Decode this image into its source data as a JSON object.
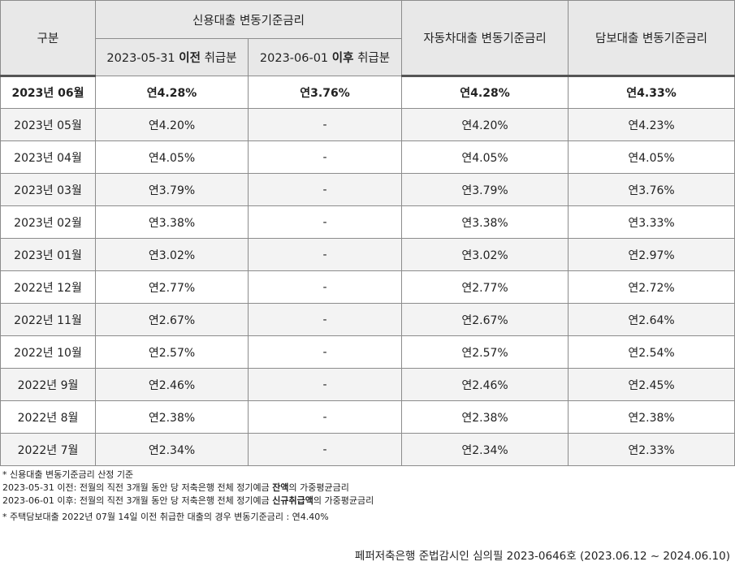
{
  "header": {
    "category": "구분",
    "credit_group": "신용대출 변동기준금리",
    "credit_before_date": "2023-05-31",
    "credit_before_bold": "이전",
    "credit_before_suffix": "취급분",
    "credit_after_date": "2023-06-01",
    "credit_after_bold": "이후",
    "credit_after_suffix": "취급분",
    "auto": "자동차대출 변동기준금리",
    "mortgage": "담보대출 변동기준금리"
  },
  "rows": [
    {
      "period": "2023년 06월",
      "before": "연4.28%",
      "after": "연3.76%",
      "auto": "연4.28%",
      "mortgage": "연4.33%"
    },
    {
      "period": "2023년 05월",
      "before": "연4.20%",
      "after": "-",
      "auto": "연4.20%",
      "mortgage": "연4.23%"
    },
    {
      "period": "2023년 04월",
      "before": "연4.05%",
      "after": "-",
      "auto": "연4.05%",
      "mortgage": "연4.05%"
    },
    {
      "period": "2023년 03월",
      "before": "연3.79%",
      "after": "-",
      "auto": "연3.79%",
      "mortgage": "연3.76%"
    },
    {
      "period": "2023년 02월",
      "before": "연3.38%",
      "after": "-",
      "auto": "연3.38%",
      "mortgage": "연3.33%"
    },
    {
      "period": "2023년 01월",
      "before": "연3.02%",
      "after": "-",
      "auto": "연3.02%",
      "mortgage": "연2.97%"
    },
    {
      "period": "2022년 12월",
      "before": "연2.77%",
      "after": "-",
      "auto": "연2.77%",
      "mortgage": "연2.72%"
    },
    {
      "period": "2022년 11월",
      "before": "연2.67%",
      "after": "-",
      "auto": "연2.67%",
      "mortgage": "연2.64%"
    },
    {
      "period": "2022년 10월",
      "before": "연2.57%",
      "after": "-",
      "auto": "연2.57%",
      "mortgage": "연2.54%"
    },
    {
      "period": "2022년 9월",
      "before": "연2.46%",
      "after": "-",
      "auto": "연2.46%",
      "mortgage": "연2.45%"
    },
    {
      "period": "2022년 8월",
      "before": "연2.38%",
      "after": "-",
      "auto": "연2.38%",
      "mortgage": "연2.38%"
    },
    {
      "period": "2022년 7월",
      "before": "연2.34%",
      "after": "-",
      "auto": "연2.34%",
      "mortgage": "연2.33%"
    }
  ],
  "notes": {
    "line1": "* 신용대출 변동기준금리 산정 기준",
    "line2_prefix": "2023-05-31 이전: 전월의 직전 3개월 동안 당 저축은행 전체 정기예금 ",
    "line2_bold": "잔액",
    "line2_suffix": "의 가중평균금리",
    "line3_prefix": "2023-06-01 이후: 전월의 직전 3개월 동안 당 저축은행 전체 정기예금 ",
    "line3_bold": "신규취급액",
    "line3_suffix": "의 가중평균금리",
    "line4": "* 주택담보대출 2022년 07월 14일 이전 취급한 대출의 경우 변동기준금리 : 연4.40%"
  },
  "footer": "페퍼저축은행 준법감시인 심의필 2023-0646호 (2023.06.12 ~ 2024.06.10)"
}
